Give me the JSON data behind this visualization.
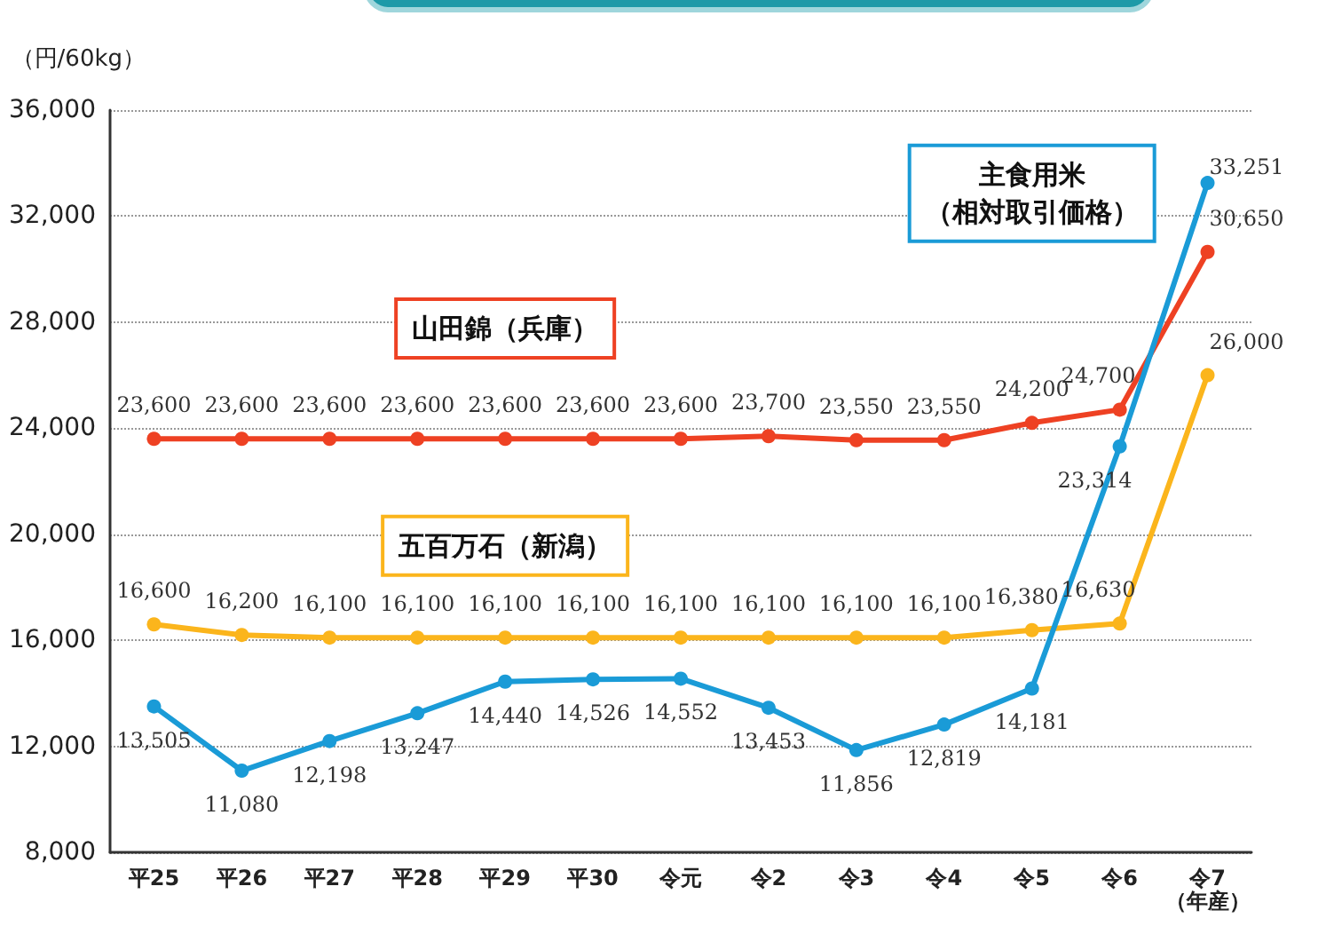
{
  "chart_data": {
    "type": "line",
    "ylabel": "（円/60kg）",
    "categories": [
      "平25",
      "平26",
      "平27",
      "平28",
      "平29",
      "平30",
      "令元",
      "令2",
      "令3",
      "令4",
      "令5",
      "令6",
      "令7\n（年産）"
    ],
    "series": [
      {
        "name": "山田錦（兵庫）",
        "color": "#ee4123",
        "values": [
          23600,
          23600,
          23600,
          23600,
          23600,
          23600,
          23600,
          23700,
          23550,
          23550,
          24200,
          24700,
          30650
        ],
        "value_labels": [
          "23,600",
          "23,600",
          "23,600",
          "23,600",
          "23,600",
          "23,600",
          "23,600",
          "23,700",
          "23,550",
          "23,550",
          "24,200",
          "24,700",
          "30,650"
        ]
      },
      {
        "name": "五百万石（新潟）",
        "color": "#fbb51c",
        "values": [
          16600,
          16200,
          16100,
          16100,
          16100,
          16100,
          16100,
          16100,
          16100,
          16100,
          16380,
          16630,
          26000
        ],
        "value_labels": [
          "16,600",
          "16,200",
          "16,100",
          "16,100",
          "16,100",
          "16,100",
          "16,100",
          "16,100",
          "16,100",
          "16,100",
          "16,380",
          "16,630",
          "26,000"
        ]
      },
      {
        "name": "主食用米（相対取引価格）",
        "color": "#1a9bd7",
        "values": [
          13505,
          11080,
          12198,
          13247,
          14440,
          14526,
          14552,
          13453,
          11856,
          12819,
          14181,
          23314,
          33251
        ],
        "value_labels": [
          "13,505",
          "11,080",
          "12,198",
          "13,247",
          "14,440",
          "14,526",
          "14,552",
          "13,453",
          "11,856",
          "12,819",
          "14,181",
          "23,314",
          "33,251"
        ]
      }
    ],
    "ylim": [
      8000,
      36000
    ],
    "yticks": [
      {
        "value": 8000,
        "label": "8,000"
      },
      {
        "value": 12000,
        "label": "12,000"
      },
      {
        "value": 16000,
        "label": "16,000"
      },
      {
        "value": 20000,
        "label": "20,000"
      },
      {
        "value": 24000,
        "label": "24,000"
      },
      {
        "value": 28000,
        "label": "28,000"
      },
      {
        "value": 32000,
        "label": "32,000"
      },
      {
        "value": 36000,
        "label": "36,000"
      }
    ],
    "grid": "y",
    "marker": "circle",
    "line_style": "solid"
  }
}
